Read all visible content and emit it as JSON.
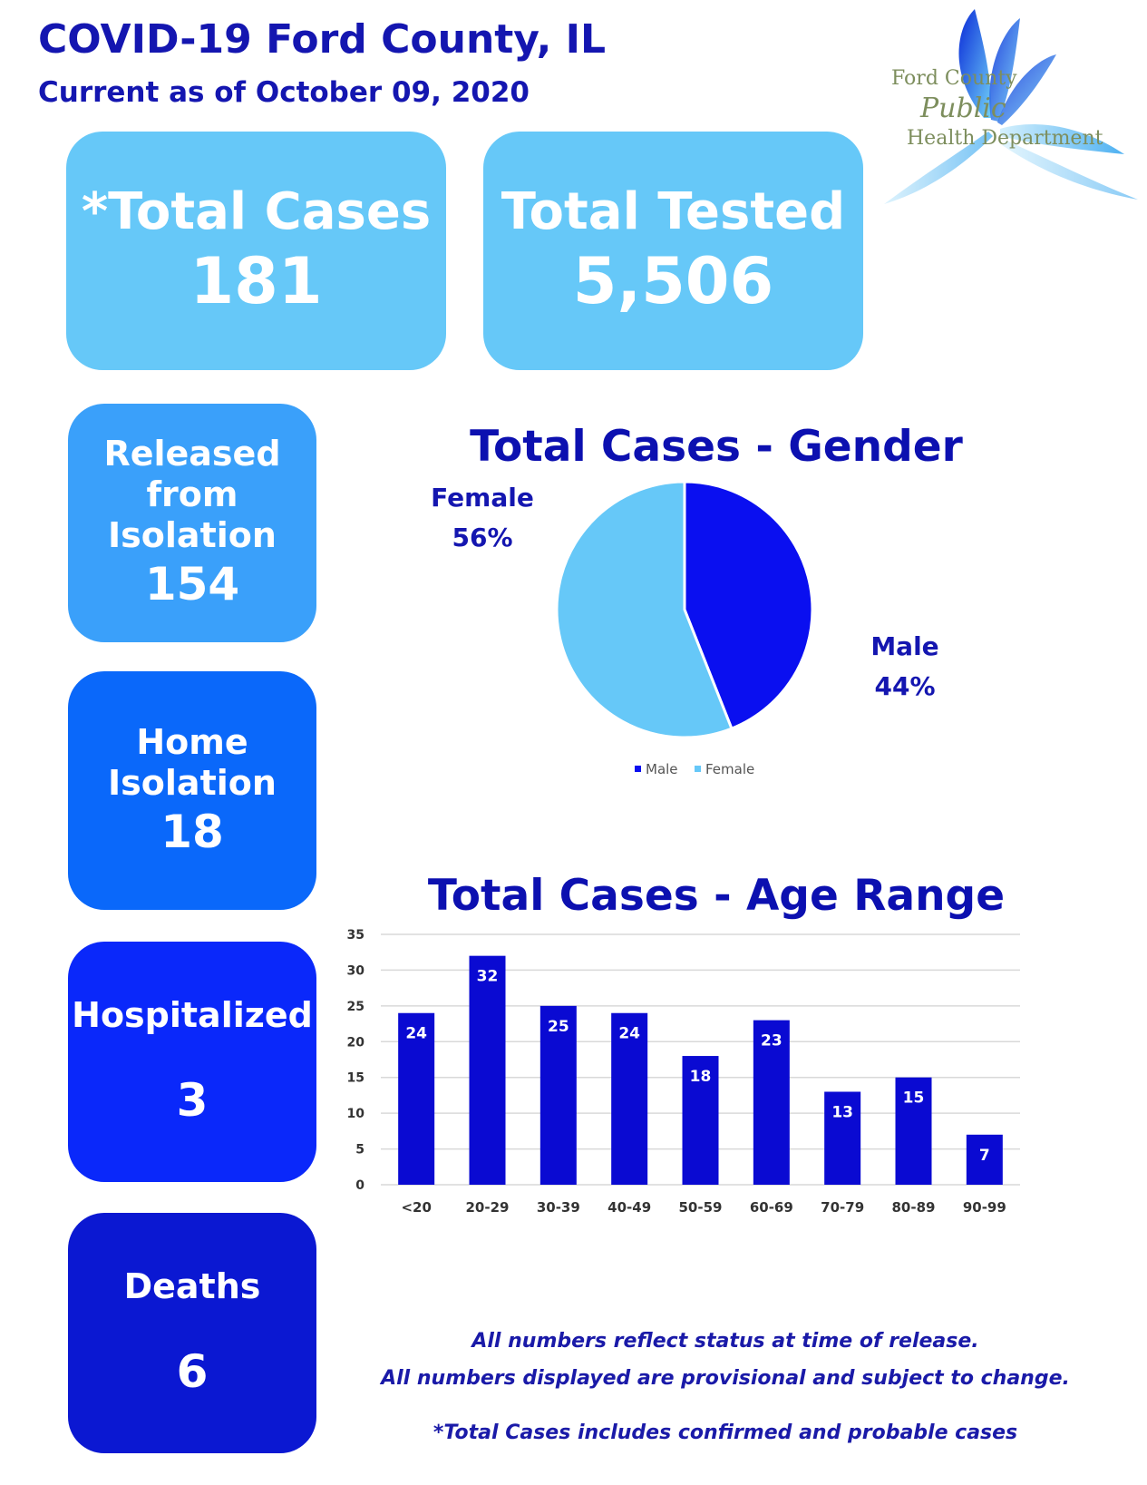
{
  "header": {
    "title": "COVID-19 Ford County, IL",
    "subtitle": "Current as of October 09, 2020"
  },
  "logo": {
    "line1": "Ford County",
    "line2": "Public",
    "line3": "Health Department"
  },
  "stats": {
    "total_cases": {
      "label": "*Total Cases",
      "value": "181"
    },
    "total_tested": {
      "label": "Total Tested",
      "value": "5,506"
    },
    "released": {
      "label_lines": [
        "Released",
        "from",
        "Isolation"
      ],
      "value": "154"
    },
    "home_isolation": {
      "label_lines": [
        "Home",
        "Isolation"
      ],
      "value": "18"
    },
    "hospitalized": {
      "label": "Hospitalized",
      "value": "3"
    },
    "deaths": {
      "label": "Deaths",
      "value": "6"
    }
  },
  "colors": {
    "male": "#0a0ff0",
    "female": "#66c8f8",
    "bar": "#0a0ad2",
    "title": "#1416b0"
  },
  "chart_data": [
    {
      "type": "pie",
      "title": "Total Cases - Gender",
      "slices": [
        {
          "name": "Male",
          "value": 44,
          "label": "Male",
          "pct_label": "44%"
        },
        {
          "name": "Female",
          "value": 56,
          "label": "Female",
          "pct_label": "56%"
        }
      ],
      "legend": [
        "Male",
        "Female"
      ],
      "legend_position": "bottom"
    },
    {
      "type": "bar",
      "title": "Total Cases - Age Range",
      "categories": [
        "<20",
        "20-29",
        "30-39",
        "40-49",
        "50-59",
        "60-69",
        "70-79",
        "80-89",
        "90-99"
      ],
      "values": [
        24,
        32,
        25,
        24,
        18,
        23,
        13,
        15,
        7
      ],
      "ylim": [
        0,
        35
      ],
      "yticks": [
        0,
        5,
        10,
        15,
        20,
        25,
        30,
        35
      ],
      "grid": true
    }
  ],
  "footnotes": {
    "line1": "All numbers reflect status at time of release.",
    "line2": "All numbers displayed are provisional and subject to change.",
    "line3": "*Total Cases includes confirmed and probable cases"
  }
}
